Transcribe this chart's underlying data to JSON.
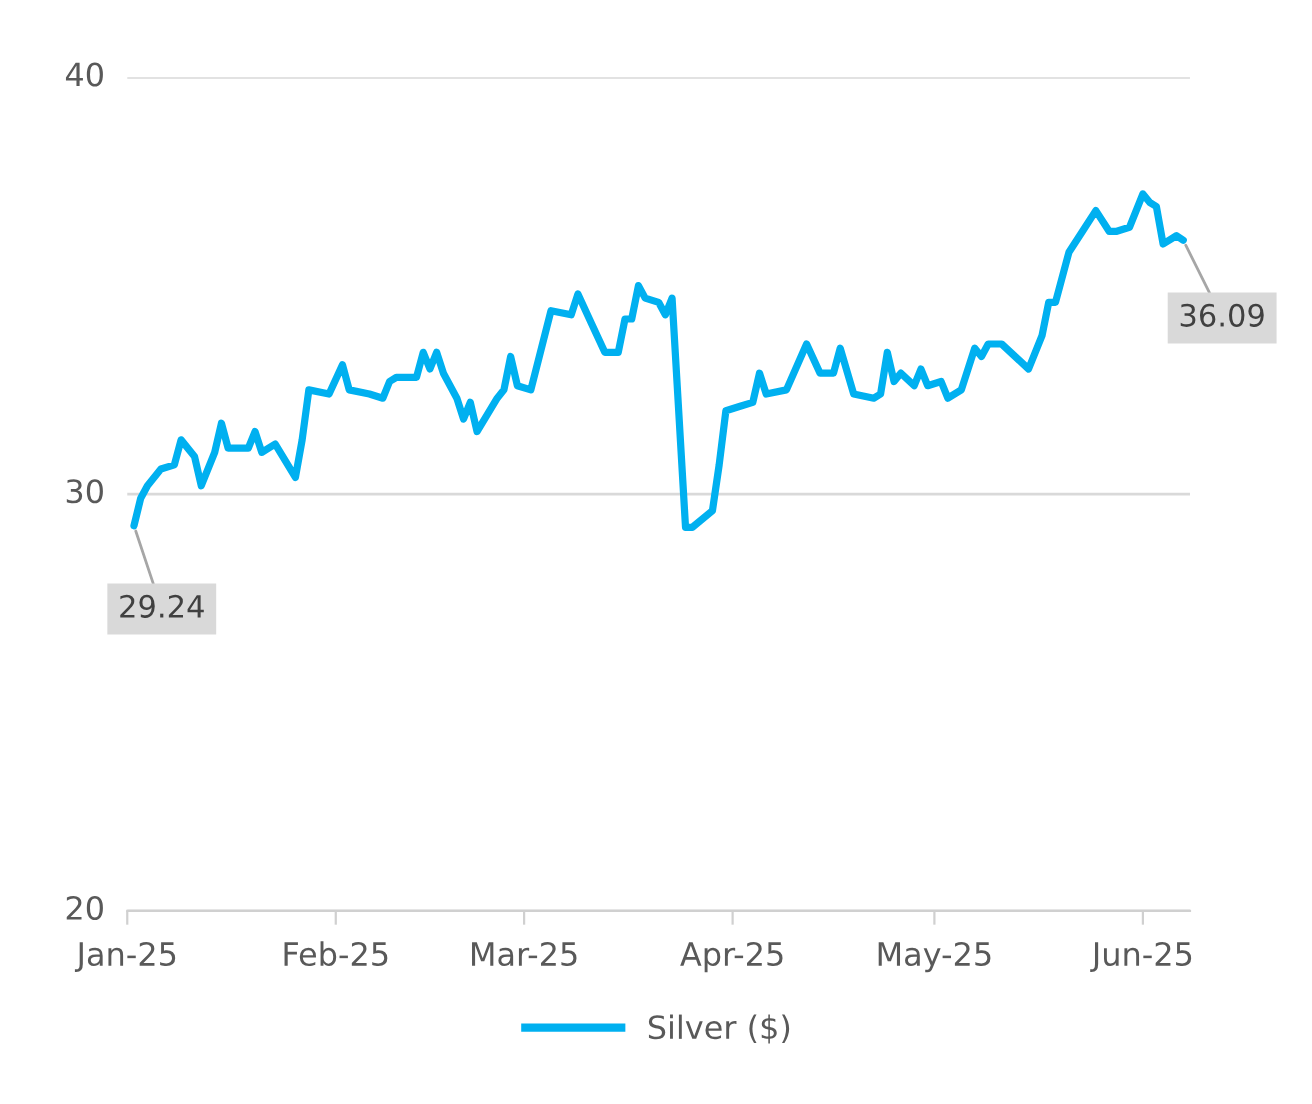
{
  "chart_data": {
    "type": "line",
    "x": [
      "2025-01-02",
      "2025-01-03",
      "2025-01-04",
      "2025-01-06",
      "2025-01-08",
      "2025-01-09",
      "2025-01-11",
      "2025-01-12",
      "2025-01-14",
      "2025-01-15",
      "2025-01-16",
      "2025-01-19",
      "2025-01-20",
      "2025-01-21",
      "2025-01-23",
      "2025-01-26",
      "2025-01-27",
      "2025-01-28",
      "2025-01-31",
      "2025-02-02",
      "2025-02-03",
      "2025-02-06",
      "2025-02-08",
      "2025-02-09",
      "2025-02-10",
      "2025-02-13",
      "2025-02-14",
      "2025-02-15",
      "2025-02-16",
      "2025-02-17",
      "2025-02-19",
      "2025-02-20",
      "2025-02-21",
      "2025-02-22",
      "2025-02-25",
      "2025-02-26",
      "2025-02-27",
      "2025-02-28",
      "2025-03-02",
      "2025-03-05",
      "2025-03-08",
      "2025-03-09",
      "2025-03-11",
      "2025-03-13",
      "2025-03-15",
      "2025-03-16",
      "2025-03-17",
      "2025-03-18",
      "2025-03-19",
      "2025-03-21",
      "2025-03-22",
      "2025-03-23",
      "2025-03-25",
      "2025-03-26",
      "2025-03-29",
      "2025-03-30",
      "2025-03-31",
      "2025-04-02",
      "2025-04-04",
      "2025-04-05",
      "2025-04-06",
      "2025-04-09",
      "2025-04-12",
      "2025-04-14",
      "2025-04-16",
      "2025-04-17",
      "2025-04-19",
      "2025-04-22",
      "2025-04-23",
      "2025-04-24",
      "2025-04-25",
      "2025-04-26",
      "2025-04-28",
      "2025-04-29",
      "2025-04-30",
      "2025-05-02",
      "2025-05-03",
      "2025-05-05",
      "2025-05-07",
      "2025-05-08",
      "2025-05-09",
      "2025-05-11",
      "2025-05-13",
      "2025-05-15",
      "2025-05-17",
      "2025-05-18",
      "2025-05-19",
      "2025-05-21",
      "2025-05-23",
      "2025-05-25",
      "2025-05-27",
      "2025-05-28",
      "2025-05-30",
      "2025-06-01",
      "2025-06-02",
      "2025-06-03",
      "2025-06-04",
      "2025-06-06",
      "2025-06-07"
    ],
    "series": [
      {
        "name": "Silver ($)",
        "color": "#00b0f0",
        "values": [
          29.24,
          29.9,
          30.2,
          30.6,
          30.7,
          31.3,
          30.9,
          30.2,
          31.0,
          31.7,
          31.1,
          31.1,
          31.5,
          31.0,
          31.2,
          30.4,
          31.3,
          32.5,
          32.4,
          33.1,
          32.5,
          32.4,
          32.3,
          32.7,
          32.8,
          32.8,
          33.4,
          33.0,
          33.4,
          32.9,
          32.3,
          31.8,
          32.2,
          31.5,
          32.3,
          32.5,
          33.3,
          32.6,
          32.5,
          34.4,
          34.3,
          34.8,
          34.1,
          33.4,
          33.4,
          34.2,
          34.2,
          35.0,
          34.7,
          34.6,
          34.3,
          34.7,
          29.2,
          29.2,
          29.6,
          30.7,
          32.0,
          32.1,
          32.2,
          32.9,
          32.4,
          32.5,
          33.6,
          32.9,
          32.9,
          33.5,
          32.4,
          32.3,
          32.4,
          33.4,
          32.7,
          32.9,
          32.6,
          33.0,
          32.6,
          32.7,
          32.3,
          32.5,
          33.5,
          33.3,
          33.6,
          33.6,
          33.3,
          33.0,
          33.8,
          34.6,
          34.6,
          35.8,
          36.3,
          36.8,
          36.3,
          36.3,
          36.4,
          37.2,
          37.0,
          36.9,
          36.0,
          36.2,
          36.09
        ]
      }
    ],
    "xlim": [
      "2025-01-01",
      "2025-06-08"
    ],
    "xticks": [
      {
        "value": "2025-01-01",
        "label": "Jan-25"
      },
      {
        "value": "2025-02-01",
        "label": "Feb-25"
      },
      {
        "value": "2025-03-01",
        "label": "Mar-25"
      },
      {
        "value": "2025-04-01",
        "label": "Apr-25"
      },
      {
        "value": "2025-05-01",
        "label": "May-25"
      },
      {
        "value": "2025-06-01",
        "label": "Jun-25"
      }
    ],
    "ylim": [
      20,
      40
    ],
    "yticks": [
      20,
      30,
      40
    ],
    "grid": "y",
    "legend": "bottom",
    "marker": "none",
    "line_style": "solid",
    "annotations": [
      {
        "text": "29.24",
        "x": "2025-01-02",
        "y": 29.24
      },
      {
        "text": "36.09",
        "x": "2025-06-07",
        "y": 36.09
      }
    ]
  }
}
